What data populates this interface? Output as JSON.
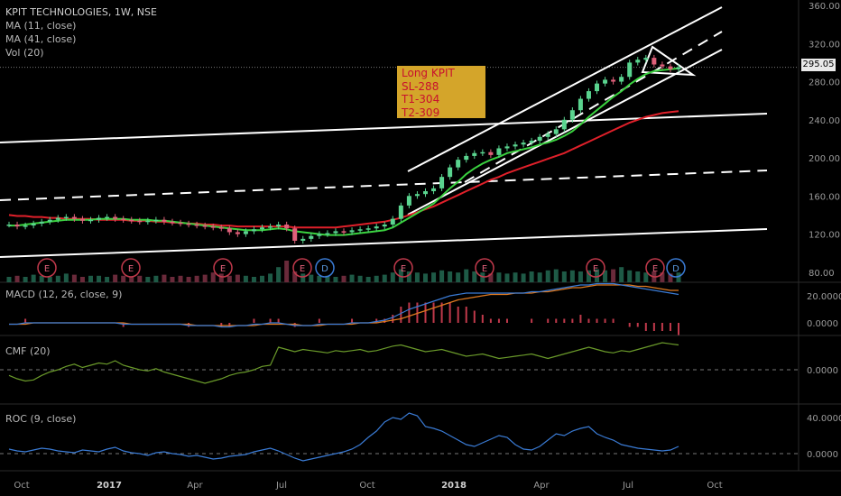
{
  "header": {
    "title": "KPIT TECHNOLOGIES, 1W, NSE",
    "indicators": [
      "MA (11, close)",
      "MA (41, close)",
      "Vol (20)"
    ]
  },
  "annotation": {
    "lines": [
      "Long KPIT",
      "SL-288",
      "T1-304",
      "T2-309"
    ],
    "bg_color": "#d4a52a",
    "text_color": "#c8102e"
  },
  "last_price": "295.05",
  "panes": {
    "macd": {
      "label": "MACD (12, 26, close, 9)",
      "ticks": [
        "20.0000",
        "0.0000"
      ]
    },
    "cmf": {
      "label": "CMF (20)",
      "ticks": [
        "0.0000"
      ]
    },
    "roc": {
      "label": "ROC (9, close)",
      "ticks": [
        "40.0000",
        "0.0000"
      ]
    }
  },
  "events": {
    "earnings": [
      "E",
      "E",
      "E",
      "E",
      "E",
      "E",
      "E",
      "E"
    ],
    "dividends": [
      "D",
      "D"
    ]
  },
  "colors": {
    "up": "#5ad48f",
    "down": "#e0607a",
    "ma11": "#3ad13f",
    "ma41": "#e0202a",
    "macd": "#3a7bd5",
    "signal": "#e07a20",
    "cmf": "#6a9a2a",
    "roc": "#3a7bd5",
    "trend": "#ffffff"
  },
  "chart_data": {
    "type": "candlestick",
    "title": "KPIT TECHNOLOGIES, 1W, NSE",
    "x_ticks": [
      "Oct",
      "2017",
      "Apr",
      "Jul",
      "Oct",
      "2018",
      "Apr",
      "Jul",
      "Oct"
    ],
    "y_ticks": [
      "360.00",
      "320.00",
      "280.00",
      "240.00",
      "200.00",
      "160.00",
      "120.00",
      "80.00"
    ],
    "ylim": [
      70,
      365
    ],
    "last_price": 295.05,
    "price_series_weekly_close": [
      130,
      128,
      129,
      131,
      133,
      135,
      137,
      138,
      136,
      134,
      135,
      137,
      138,
      136,
      135,
      134,
      133,
      134,
      135,
      133,
      132,
      131,
      130,
      129,
      128,
      127,
      126,
      122,
      120,
      123,
      125,
      127,
      128,
      130,
      126,
      113,
      115,
      118,
      120,
      121,
      123,
      122,
      124,
      125,
      126,
      128,
      130,
      136,
      150,
      160,
      162,
      165,
      168,
      180,
      190,
      198,
      202,
      205,
      206,
      203,
      210,
      212,
      214,
      216,
      218,
      222,
      225,
      230,
      240,
      250,
      262,
      270,
      278,
      282,
      280,
      285,
      300,
      303,
      305,
      298,
      296,
      293,
      295.05
    ],
    "series": [
      {
        "name": "MA (11, close)",
        "values": [
          129,
          129,
          130,
          131,
          132,
          133,
          134,
          135,
          135,
          135,
          135,
          136,
          136,
          136,
          136,
          135,
          135,
          135,
          134,
          134,
          133,
          132,
          131,
          130,
          129,
          128,
          127,
          126,
          125,
          124,
          124,
          124,
          125,
          126,
          125,
          123,
          122,
          121,
          120,
          119,
          119,
          119,
          120,
          121,
          122,
          123,
          124,
          127,
          132,
          137,
          142,
          147,
          152,
          160,
          168,
          175,
          183,
          189,
          194,
          198,
          201,
          205,
          207,
          209,
          211,
          214,
          216,
          219,
          223,
          228,
          235,
          243,
          250,
          257,
          264,
          270,
          277,
          283,
          288,
          291,
          292,
          293,
          294
        ]
      },
      {
        "name": "MA (41, close)",
        "values": [
          140,
          139,
          139,
          138,
          138,
          137,
          137,
          136,
          136,
          136,
          136,
          135,
          135,
          135,
          135,
          134,
          134,
          134,
          133,
          133,
          132,
          132,
          131,
          131,
          130,
          130,
          129,
          129,
          128,
          128,
          128,
          128,
          128,
          128,
          128,
          127,
          127,
          127,
          127,
          127,
          127,
          128,
          129,
          130,
          131,
          132,
          133,
          135,
          137,
          140,
          143,
          146,
          149,
          153,
          157,
          161,
          165,
          169,
          173,
          177,
          180,
          184,
          187,
          190,
          193,
          196,
          199,
          202,
          205,
          209,
          213,
          217,
          221,
          225,
          229,
          233,
          237,
          240,
          243,
          245,
          247,
          248,
          249
        ]
      }
    ],
    "volume": [
      5,
      6,
      5,
      7,
      6,
      5,
      6,
      8,
      7,
      5,
      6,
      6,
      5,
      7,
      6,
      5,
      6,
      5,
      6,
      7,
      5,
      6,
      5,
      6,
      7,
      9,
      8,
      6,
      7,
      6,
      5,
      6,
      8,
      14,
      20,
      10,
      8,
      7,
      6,
      6,
      5,
      6,
      7,
      6,
      5,
      6,
      7,
      9,
      12,
      10,
      9,
      8,
      9,
      11,
      10,
      9,
      12,
      10,
      9,
      8,
      9,
      8,
      9,
      8,
      10,
      9,
      11,
      12,
      10,
      11,
      10,
      11,
      12,
      11,
      12,
      14,
      11,
      10,
      9,
      10,
      9,
      8,
      9
    ],
    "indicators": {
      "macd": [
        -1,
        -1,
        0,
        0,
        0,
        0,
        0,
        0,
        0,
        0,
        0,
        0,
        0,
        0,
        -1,
        -1,
        -1,
        -1,
        -1,
        -1,
        -1,
        -1,
        -2,
        -2,
        -2,
        -2,
        -3,
        -3,
        -2,
        -2,
        -1,
        -1,
        0,
        0,
        -1,
        -2,
        -2,
        -2,
        -1,
        -1,
        -1,
        -1,
        0,
        0,
        0,
        1,
        2,
        4,
        7,
        10,
        12,
        14,
        16,
        18,
        20,
        21,
        22,
        22,
        22,
        22,
        22,
        22,
        22,
        22,
        23,
        23,
        24,
        25,
        26,
        27,
        28,
        28,
        29,
        29,
        29,
        28,
        27,
        26,
        25,
        24,
        23,
        22,
        21
      ],
      "macd_signal": [
        -1,
        -1,
        -1,
        0,
        0,
        0,
        0,
        0,
        0,
        0,
        0,
        0,
        0,
        0,
        0,
        -1,
        -1,
        -1,
        -1,
        -1,
        -1,
        -1,
        -1,
        -2,
        -2,
        -2,
        -2,
        -2,
        -2,
        -2,
        -2,
        -1,
        -1,
        -1,
        -1,
        -1,
        -2,
        -2,
        -2,
        -1,
        -1,
        -1,
        -1,
        0,
        0,
        0,
        1,
        2,
        3,
        5,
        7,
        9,
        11,
        13,
        15,
        17,
        18,
        19,
        20,
        21,
        21,
        21,
        22,
        22,
        22,
        23,
        23,
        24,
        25,
        26,
        26,
        27,
        28,
        28,
        28,
        28,
        28,
        27,
        27,
        26,
        25,
        24,
        24
      ],
      "cmf": [
        -0.05,
        -0.08,
        -0.1,
        -0.09,
        -0.05,
        -0.02,
        0.0,
        0.03,
        0.05,
        0.02,
        0.04,
        0.06,
        0.05,
        0.08,
        0.04,
        0.02,
        0.0,
        -0.01,
        0.01,
        -0.02,
        -0.04,
        -0.06,
        -0.08,
        -0.1,
        -0.12,
        -0.1,
        -0.08,
        -0.05,
        -0.03,
        -0.02,
        0.0,
        0.03,
        0.04,
        0.2,
        0.18,
        0.16,
        0.18,
        0.17,
        0.16,
        0.15,
        0.17,
        0.16,
        0.17,
        0.18,
        0.16,
        0.17,
        0.19,
        0.21,
        0.22,
        0.2,
        0.18,
        0.16,
        0.17,
        0.18,
        0.16,
        0.14,
        0.12,
        0.13,
        0.14,
        0.12,
        0.1,
        0.11,
        0.12,
        0.13,
        0.14,
        0.12,
        0.1,
        0.12,
        0.14,
        0.16,
        0.18,
        0.2,
        0.18,
        0.16,
        0.15,
        0.17,
        0.16,
        0.18,
        0.2,
        0.22,
        0.24,
        0.23,
        0.22
      ],
      "roc": [
        5,
        3,
        2,
        4,
        6,
        5,
        3,
        2,
        1,
        4,
        3,
        2,
        5,
        7,
        3,
        1,
        0,
        -2,
        1,
        2,
        0,
        -1,
        -3,
        -2,
        -4,
        -6,
        -5,
        -3,
        -2,
        -1,
        2,
        4,
        6,
        3,
        -1,
        -5,
        -8,
        -6,
        -4,
        -2,
        0,
        2,
        5,
        10,
        18,
        25,
        35,
        40,
        38,
        45,
        42,
        30,
        28,
        25,
        20,
        15,
        10,
        8,
        12,
        16,
        20,
        18,
        10,
        5,
        4,
        8,
        15,
        22,
        20,
        25,
        28,
        30,
        22,
        18,
        15,
        10,
        8,
        6,
        5,
        4,
        3,
        4,
        8
      ]
    }
  }
}
